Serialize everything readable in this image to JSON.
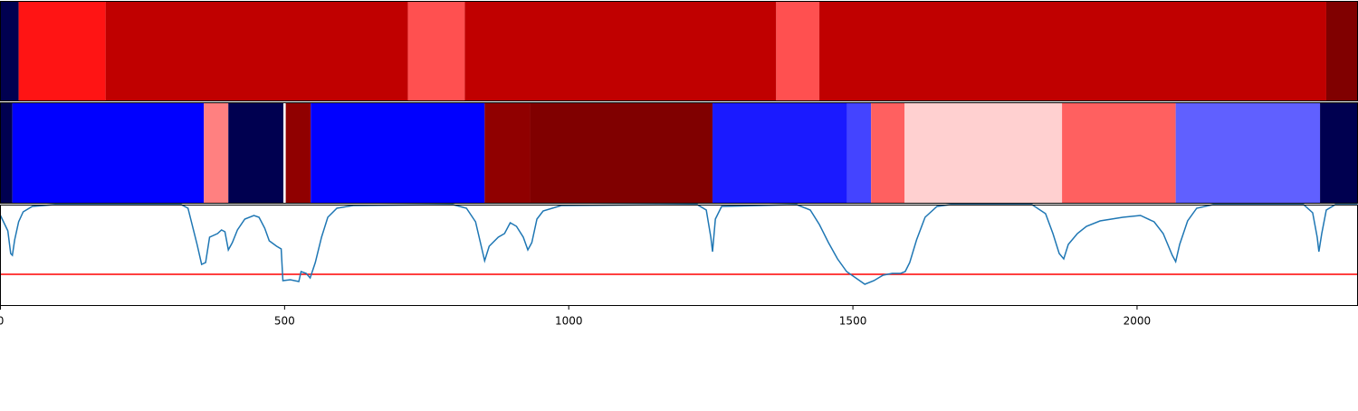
{
  "chart_data": [
    {
      "type": "segments",
      "xlim": [
        0,
        2388
      ],
      "edges": [
        0,
        32,
        185,
        717,
        817,
        1365,
        1441,
        2333,
        2388
      ],
      "colors": [
        "#000050",
        "#ff1414",
        "#c00000",
        "#ff5050",
        "#c00000",
        "#ff5050",
        "#c00000",
        "#800000"
      ]
    },
    {
      "type": "segments",
      "xlim": [
        0,
        2388
      ],
      "edges": [
        0,
        21,
        358,
        401,
        498,
        502,
        546,
        852,
        932,
        1253,
        1490,
        1532,
        1591,
        1868,
        2068,
        2322,
        2388
      ],
      "colors": [
        "#000050",
        "#0000ff",
        "#ff8080",
        "#000050",
        "#ffffff",
        "#900000",
        "#0000ff",
        "#900000",
        "#800000",
        "#1a1aff",
        "#4444ff",
        "#ff6060",
        "#ffd0d0",
        "#ff6060",
        "#6060ff",
        "#000050"
      ]
    },
    {
      "type": "line",
      "xlim": [
        0,
        2388
      ],
      "ylim": [
        0,
        1.12
      ],
      "xticks": [
        0,
        500,
        1000,
        1500,
        2000
      ],
      "x": [
        0,
        13,
        18,
        21,
        25,
        32,
        40,
        56,
        96,
        318,
        330,
        338,
        346,
        354,
        361,
        368,
        382,
        389,
        395,
        401,
        408,
        417,
        430,
        446,
        455,
        465,
        473,
        486,
        494,
        497,
        510,
        525,
        529,
        538,
        545,
        554,
        565,
        576,
        592,
        621,
        796,
        820,
        836,
        849,
        852,
        860,
        876,
        887,
        897,
        908,
        920,
        928,
        935,
        944,
        955,
        987,
        1226,
        1242,
        1250,
        1253,
        1258,
        1269,
        1401,
        1425,
        1441,
        1457,
        1473,
        1489,
        1521,
        1537,
        1553,
        1569,
        1584,
        1592,
        1600,
        1612,
        1627,
        1648,
        1672,
        1815,
        1839,
        1852,
        1863,
        1871,
        1879,
        1895,
        1911,
        1935,
        1975,
        2006,
        2030,
        2046,
        2062,
        2068,
        2075,
        2089,
        2105,
        2134,
        2293,
        2309,
        2317,
        2320,
        2325,
        2333,
        2349,
        2388
      ],
      "series": [
        {
          "color": "#1f77b4",
          "values": [
            1.0,
            0.83,
            0.58,
            0.56,
            0.73,
            0.93,
            1.04,
            1.1,
            1.12,
            1.12,
            1.08,
            0.88,
            0.68,
            0.46,
            0.48,
            0.76,
            0.8,
            0.84,
            0.82,
            0.62,
            0.7,
            0.84,
            0.96,
            1.0,
            0.98,
            0.86,
            0.72,
            0.66,
            0.63,
            0.28,
            0.29,
            0.27,
            0.38,
            0.36,
            0.31,
            0.48,
            0.76,
            0.98,
            1.08,
            1.11,
            1.12,
            1.08,
            0.93,
            0.58,
            0.5,
            0.66,
            0.76,
            0.8,
            0.92,
            0.88,
            0.76,
            0.62,
            0.7,
            0.96,
            1.05,
            1.11,
            1.12,
            1.06,
            0.76,
            0.6,
            0.96,
            1.1,
            1.12,
            1.06,
            0.9,
            0.7,
            0.52,
            0.38,
            0.24,
            0.28,
            0.34,
            0.36,
            0.36,
            0.38,
            0.48,
            0.73,
            0.98,
            1.1,
            1.12,
            1.12,
            1.02,
            0.8,
            0.58,
            0.52,
            0.68,
            0.8,
            0.88,
            0.94,
            0.98,
            1.0,
            0.93,
            0.8,
            0.56,
            0.49,
            0.68,
            0.94,
            1.08,
            1.12,
            1.12,
            1.03,
            0.76,
            0.6,
            0.8,
            1.06,
            1.12,
            1.12
          ]
        }
      ],
      "hline": {
        "value": 0.35,
        "color": "#ff0000"
      }
    }
  ]
}
